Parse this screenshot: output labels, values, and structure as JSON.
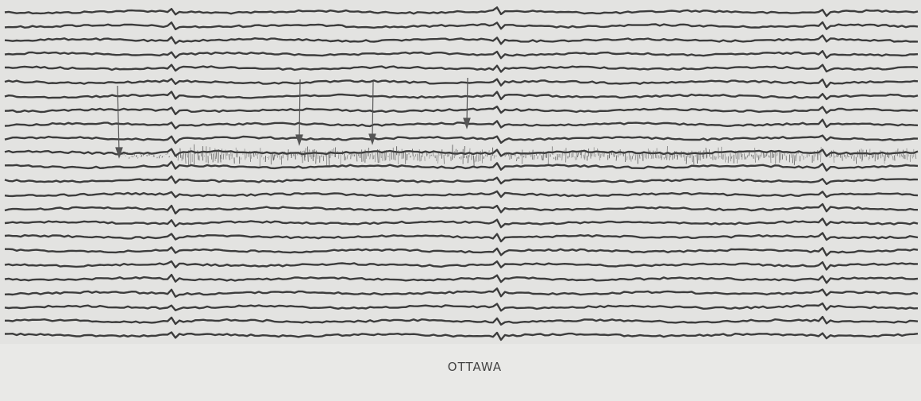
{
  "caption": "OTTAWA"
}
